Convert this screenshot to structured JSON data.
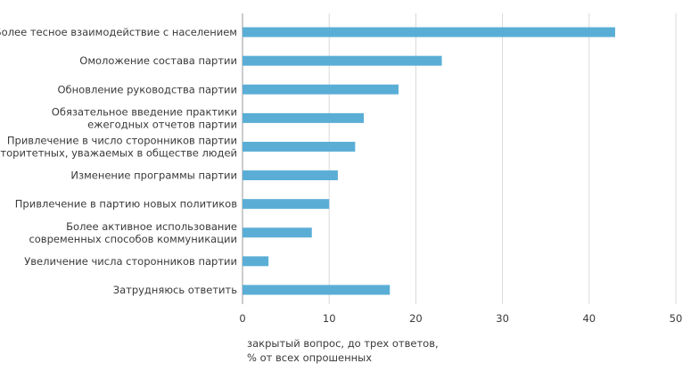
{
  "chart_data": {
    "type": "bar",
    "orientation": "horizontal",
    "categories": [
      [
        "Более тесное взаимодействие с населением"
      ],
      [
        "Омоложение состава партии"
      ],
      [
        "Обновление руководства партии"
      ],
      [
        "Обязательное введение практики",
        "ежегодных отчетов партии"
      ],
      [
        "Привлечение в число сторонников партии",
        "авторитетных, уважаемых в обществе людей"
      ],
      [
        "Изменение программы партии"
      ],
      [
        "Привлечение в партию новых политиков"
      ],
      [
        "Более активное использование",
        "современных способов коммуникации"
      ],
      [
        "Увеличение числа сторонников партии"
      ],
      [
        "Затрудняюсь ответить"
      ]
    ],
    "values": [
      43,
      23,
      18,
      14,
      13,
      11,
      10,
      8,
      3,
      17
    ],
    "xlim": [
      0,
      50
    ],
    "xticks": [
      "0",
      "10",
      "20",
      "30",
      "40",
      "50"
    ],
    "grid": true,
    "bar_color": "#5aaed6",
    "note_lines": [
      "закрытый вопрос, до трех ответов,",
      "% от всех опрошенных"
    ]
  }
}
